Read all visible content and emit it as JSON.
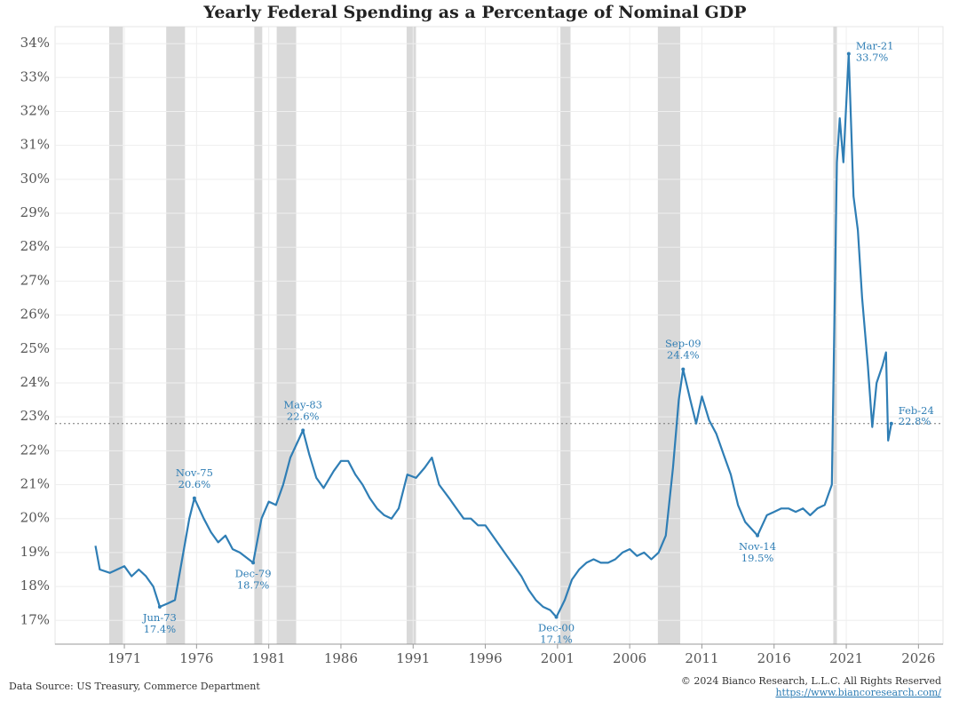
{
  "chart_data": {
    "type": "line",
    "title": "Yearly Federal Spending as a Percentage of Nominal GDP",
    "x": [
      1969.0,
      1969.3,
      1970.0,
      1970.5,
      1971.0,
      1971.5,
      1972.0,
      1972.5,
      1973.0,
      1973.45,
      1974.0,
      1974.5,
      1975.0,
      1975.5,
      1975.85,
      1976.5,
      1977.0,
      1977.5,
      1978.0,
      1978.5,
      1979.0,
      1979.92,
      1980.5,
      1981.0,
      1981.5,
      1982.0,
      1982.5,
      1983.37,
      1983.8,
      1984.3,
      1984.8,
      1985.5,
      1986.0,
      1986.5,
      1987.0,
      1987.5,
      1988.0,
      1988.5,
      1989.0,
      1989.5,
      1990.0,
      1990.6,
      1991.2,
      1991.8,
      1992.3,
      1992.8,
      1993.5,
      1994.0,
      1994.5,
      1995.0,
      1995.5,
      1996.0,
      1996.5,
      1997.0,
      1997.5,
      1998.0,
      1998.5,
      1999.0,
      1999.5,
      2000.0,
      2000.5,
      2000.92,
      2001.5,
      2002.0,
      2002.5,
      2003.0,
      2003.5,
      2004.0,
      2004.5,
      2005.0,
      2005.5,
      2006.0,
      2006.5,
      2007.0,
      2007.5,
      2008.0,
      2008.5,
      2009.0,
      2009.4,
      2009.7,
      2010.2,
      2010.6,
      2011.0,
      2011.5,
      2012.0,
      2012.5,
      2013.0,
      2013.5,
      2014.0,
      2014.85,
      2015.5,
      2016.0,
      2016.5,
      2017.0,
      2017.5,
      2018.0,
      2018.5,
      2019.0,
      2019.5,
      2020.0,
      2020.35,
      2020.55,
      2020.8,
      2021.17,
      2021.5,
      2021.8,
      2022.1,
      2022.5,
      2022.8,
      2023.1,
      2023.5,
      2023.75,
      2023.9,
      2024.12
    ],
    "series": [
      {
        "color": "#2f7eb5",
        "values": [
          19.2,
          18.5,
          18.4,
          18.5,
          18.6,
          18.3,
          18.5,
          18.3,
          18.0,
          17.4,
          17.5,
          17.6,
          18.8,
          20.0,
          20.6,
          20.0,
          19.6,
          19.3,
          19.5,
          19.1,
          19.0,
          18.7,
          20.0,
          20.5,
          20.4,
          21.0,
          21.8,
          22.6,
          21.9,
          21.2,
          20.9,
          21.4,
          21.7,
          21.7,
          21.3,
          21.0,
          20.6,
          20.3,
          20.1,
          20.0,
          20.3,
          21.3,
          21.2,
          21.5,
          21.8,
          21.0,
          20.6,
          20.3,
          20.0,
          20.0,
          19.8,
          19.8,
          19.5,
          19.2,
          18.9,
          18.6,
          18.3,
          17.9,
          17.6,
          17.4,
          17.3,
          17.1,
          17.6,
          18.2,
          18.5,
          18.7,
          18.8,
          18.7,
          18.7,
          18.8,
          19.0,
          19.1,
          18.9,
          19.0,
          18.8,
          19.0,
          19.5,
          21.5,
          23.5,
          24.4,
          23.5,
          22.8,
          23.6,
          22.9,
          22.5,
          21.9,
          21.3,
          20.4,
          19.9,
          19.5,
          20.1,
          20.2,
          20.3,
          20.3,
          20.2,
          20.3,
          20.1,
          20.3,
          20.4,
          21.0,
          30.5,
          31.8,
          30.5,
          33.7,
          29.5,
          28.5,
          26.5,
          24.5,
          22.7,
          24.0,
          24.5,
          24.9,
          22.3,
          22.8
        ]
      }
    ],
    "recessions": [
      [
        1969.95,
        1970.9
      ],
      [
        1973.9,
        1975.2
      ],
      [
        1980.0,
        1980.55
      ],
      [
        1981.55,
        1982.9
      ],
      [
        1990.55,
        1991.2
      ],
      [
        2001.2,
        2001.9
      ],
      [
        2007.95,
        2009.5
      ],
      [
        2020.1,
        2020.35
      ]
    ],
    "reference_line": 22.8,
    "annotations": [
      {
        "date": "Jun-73",
        "x": 1973.45,
        "value": 17.4,
        "value_label": "17.4%"
      },
      {
        "date": "Nov-75",
        "x": 1975.85,
        "value": 20.6,
        "value_label": "20.6%"
      },
      {
        "date": "Dec-79",
        "x": 1979.92,
        "value": 18.7,
        "value_label": "18.7%"
      },
      {
        "date": "May-83",
        "x": 1983.37,
        "value": 22.6,
        "value_label": "22.6%"
      },
      {
        "date": "Dec-00",
        "x": 2000.92,
        "value": 17.1,
        "value_label": "17.1%"
      },
      {
        "date": "Sep-09",
        "x": 2009.7,
        "value": 24.4,
        "value_label": "24.4%"
      },
      {
        "date": "Nov-14",
        "x": 2014.85,
        "value": 19.5,
        "value_label": "19.5%"
      },
      {
        "date": "Mar-21",
        "x": 2021.17,
        "value": 33.7,
        "value_label": "33.7%"
      },
      {
        "date": "Feb-24",
        "x": 2024.12,
        "value": 22.8,
        "value_label": "22.8%"
      }
    ],
    "xlim": [
      1966.2,
      2027.7
    ],
    "ylim": [
      16.3,
      34.5
    ],
    "xticks": [
      1971,
      1976,
      1981,
      1986,
      1991,
      1996,
      2001,
      2006,
      2011,
      2016,
      2021,
      2026
    ],
    "yticks": [
      {
        "value": 17,
        "label": "17%"
      },
      {
        "value": 18,
        "label": "18%"
      },
      {
        "value": 19,
        "label": "19%"
      },
      {
        "value": 20,
        "label": "20%"
      },
      {
        "value": 21,
        "label": "21%"
      },
      {
        "value": 22,
        "label": "22%"
      },
      {
        "value": 23,
        "label": "23%"
      },
      {
        "value": 24,
        "label": "24%"
      },
      {
        "value": 25,
        "label": "25%"
      },
      {
        "value": 26,
        "label": "26%"
      },
      {
        "value": 27,
        "label": "27%"
      },
      {
        "value": 28,
        "label": "28%"
      },
      {
        "value": 29,
        "label": "29%"
      },
      {
        "value": 30,
        "label": "30%"
      },
      {
        "value": 31,
        "label": "31%"
      },
      {
        "value": 32,
        "label": "32%"
      },
      {
        "value": 33,
        "label": "33%"
      },
      {
        "value": 34,
        "label": "34%"
      }
    ],
    "grid": true,
    "source": "Data Source: US Treasury, Commerce Department",
    "copyright": "© 2024 Bianco Research, L.L.C. All Rights Reserved",
    "url": "https://www.biancoresearch.com/"
  }
}
